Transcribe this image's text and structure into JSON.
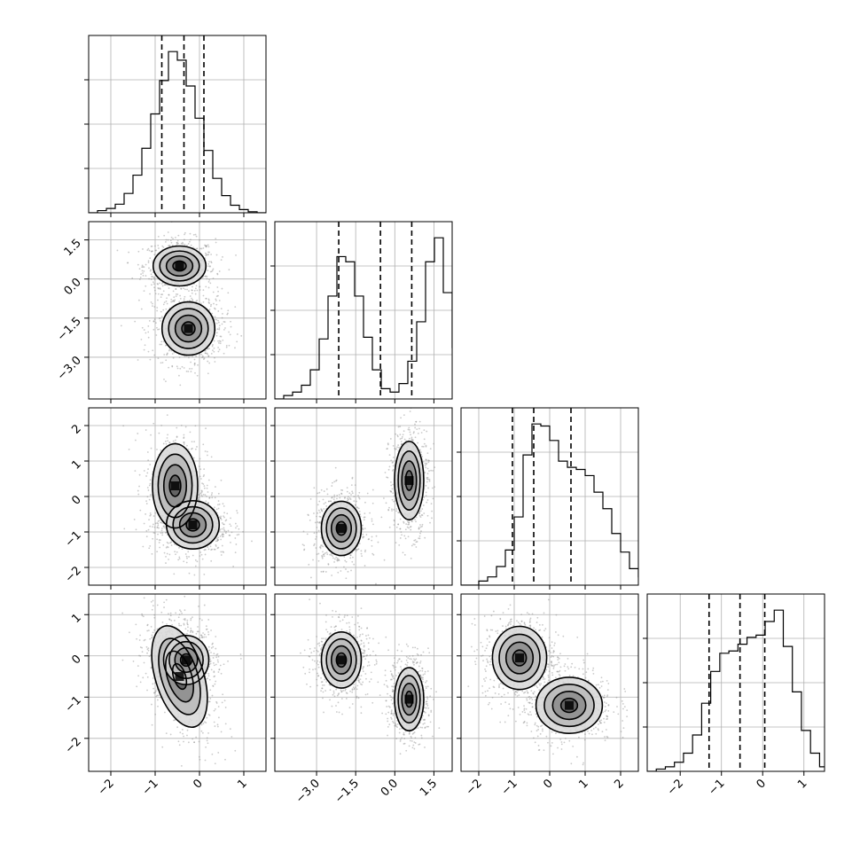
{
  "chart_data": {
    "type": "scatter",
    "title": "",
    "params": [
      {
        "name": "",
        "range": [
          -2.5,
          1.5
        ],
        "ticks": [
          -2,
          -1,
          0,
          1
        ],
        "tick_labels": [
          "−2",
          "−1",
          "0",
          "1"
        ]
      },
      {
        "name": "",
        "range": [
          -4.6,
          2.2
        ],
        "ticks": [
          -3.0,
          -1.5,
          0.0,
          1.5
        ],
        "tick_labels": [
          "−3.0",
          "−1.5",
          "0.0",
          "1.5"
        ]
      },
      {
        "name": "",
        "range": [
          -2.5,
          2.5
        ],
        "ticks": [
          -2,
          -1,
          0,
          1,
          2
        ],
        "tick_labels": [
          "−2",
          "−1",
          "0",
          "1",
          "2"
        ]
      },
      {
        "name": "",
        "range": [
          -2.8,
          1.5
        ],
        "ticks": [
          -2,
          -1,
          0,
          1
        ],
        "tick_labels": [
          "−2",
          "−1",
          "0",
          "1"
        ]
      }
    ],
    "histograms": [
      {
        "param": 0,
        "edges_start": -2.5,
        "bin_width": 0.2,
        "counts": [
          0,
          2,
          4,
          8,
          18,
          35,
          60,
          92,
          123,
          150,
          142,
          118,
          88,
          58,
          32,
          16,
          7,
          3,
          1,
          0
        ],
        "quantiles": [
          -0.85,
          -0.35,
          0.1
        ]
      },
      {
        "param": 1,
        "edges_start": -4.6,
        "bin_width": 0.34,
        "counts": [
          0,
          2,
          4,
          8,
          17,
          35,
          60,
          83,
          80,
          60,
          36,
          17,
          6,
          4,
          9,
          22,
          45,
          80,
          94,
          62,
          30,
          10
        ],
        "quantiles": [
          -2.15,
          -0.55,
          0.65
        ]
      },
      {
        "param": 2,
        "edges_start": -2.5,
        "bin_width": 0.25,
        "counts": [
          0,
          0,
          2,
          4,
          9,
          17,
          33,
          63,
          78,
          77,
          70,
          60,
          57,
          56,
          53,
          45,
          37,
          25,
          16,
          8,
          4,
          2,
          1
        ],
        "quantiles": [
          -1.05,
          -0.45,
          0.6
        ]
      },
      {
        "param": 3,
        "edges_start": -2.8,
        "bin_width": 0.22,
        "counts": [
          0,
          1,
          2,
          4,
          8,
          16,
          30,
          44,
          52,
          53,
          56,
          59,
          60,
          66,
          71,
          55,
          35,
          18,
          8,
          2,
          1,
          0
        ],
        "quantiles": [
          -1.3,
          -0.55,
          0.05
        ]
      }
    ],
    "density_blobs": [
      {
        "row": 1,
        "col": 0,
        "cx": -0.45,
        "cy": 0.5,
        "sx": 0.35,
        "sy": 0.45,
        "weight": 1.0,
        "rot": 0
      },
      {
        "row": 1,
        "col": 0,
        "cx": -0.25,
        "cy": -1.9,
        "sx": 0.35,
        "sy": 0.6,
        "weight": 1.0,
        "rot": 0
      },
      {
        "row": 2,
        "col": 0,
        "cx": -0.55,
        "cy": 0.3,
        "sx": 0.3,
        "sy": 0.7,
        "weight": 0.8,
        "rot": 0
      },
      {
        "row": 2,
        "col": 0,
        "cx": -0.15,
        "cy": -0.8,
        "sx": 0.35,
        "sy": 0.4,
        "weight": 1.0,
        "rot": 0
      },
      {
        "row": 2,
        "col": 1,
        "cx": -2.05,
        "cy": -0.9,
        "sx": 0.45,
        "sy": 0.45,
        "weight": 1.0,
        "rot": 0
      },
      {
        "row": 2,
        "col": 1,
        "cx": 0.55,
        "cy": 0.45,
        "sx": 0.33,
        "sy": 0.65,
        "weight": 1.0,
        "rot": 0
      },
      {
        "row": 3,
        "col": 0,
        "cx": -0.45,
        "cy": -0.5,
        "sx": 0.32,
        "sy": 0.75,
        "weight": 0.8,
        "rot": 0.3
      },
      {
        "row": 3,
        "col": 0,
        "cx": -0.3,
        "cy": -0.1,
        "sx": 0.3,
        "sy": 0.35,
        "weight": 1.0,
        "rot": 0
      },
      {
        "row": 3,
        "col": 1,
        "cx": -2.05,
        "cy": -0.1,
        "sx": 0.45,
        "sy": 0.4,
        "weight": 1.0,
        "rot": 0
      },
      {
        "row": 3,
        "col": 1,
        "cx": 0.55,
        "cy": -1.05,
        "sx": 0.33,
        "sy": 0.45,
        "weight": 1.0,
        "rot": 0
      },
      {
        "row": 3,
        "col": 2,
        "cx": -0.85,
        "cy": -0.05,
        "sx": 0.45,
        "sy": 0.45,
        "weight": 1.0,
        "rot": 0
      },
      {
        "row": 3,
        "col": 2,
        "cx": 0.55,
        "cy": -1.2,
        "sx": 0.55,
        "sy": 0.4,
        "weight": 0.9,
        "rot": 0
      }
    ],
    "contour_levels_sigma": [
      0.5,
      1.0,
      1.5,
      2.0
    ],
    "grid": true,
    "colors": {
      "points": "#8a8a8a",
      "contour": "#000000",
      "hist": "#000000",
      "grid": "#b0b0b0"
    }
  }
}
